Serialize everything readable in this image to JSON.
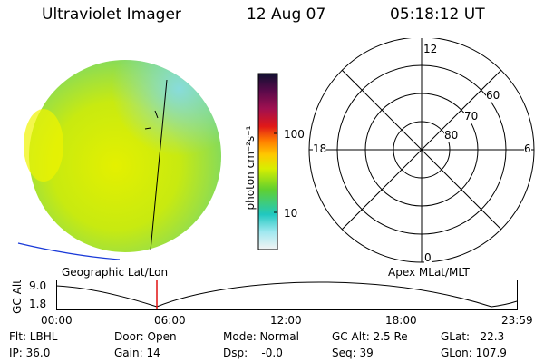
{
  "header": {
    "instrument": "Ultraviolet Imager",
    "date": "12 Aug 07",
    "time": "05:18:12 UT"
  },
  "colorbar": {
    "unit_label": "photon cm⁻²s⁻¹",
    "tick_100": "100",
    "tick_10": "10",
    "scale": "log",
    "colors": [
      "#101030",
      "#5a0a4a",
      "#a01050",
      "#e01818",
      "#ff7a00",
      "#ffc800",
      "#d8ee00",
      "#60d030",
      "#20c8c0",
      "#a0e8f0",
      "#f4f4f4"
    ]
  },
  "polar_plot": {
    "label_12": "12",
    "label_18": "18",
    "label_6": "6",
    "label_0": "0",
    "lat_60": "60",
    "lat_70": "70",
    "lat_80": "80"
  },
  "map_labels": {
    "left": "Geographic Lat/Lon",
    "right": "Apex MLat/MLT"
  },
  "altitude_strip": {
    "axis_label": "GC Alt",
    "y_top": "9.0",
    "y_bottom": "1.8",
    "x_ticks": [
      "00:00",
      "06:00",
      "12:00",
      "18:00",
      "23:59"
    ],
    "marker_color": "#e01010"
  },
  "info": {
    "flt": "Flt: LBHL",
    "ip": "IP: 36.0",
    "door": "Door: Open",
    "gain": "Gain: 14",
    "mode": "Mode: Normal",
    "dsp": "Dsp:    -0.0",
    "gcalt": "GC Alt: 2.5 Re",
    "seq": "Seq: 39",
    "glat": "GLat:   22.3",
    "glon": "GLon: 107.9"
  }
}
